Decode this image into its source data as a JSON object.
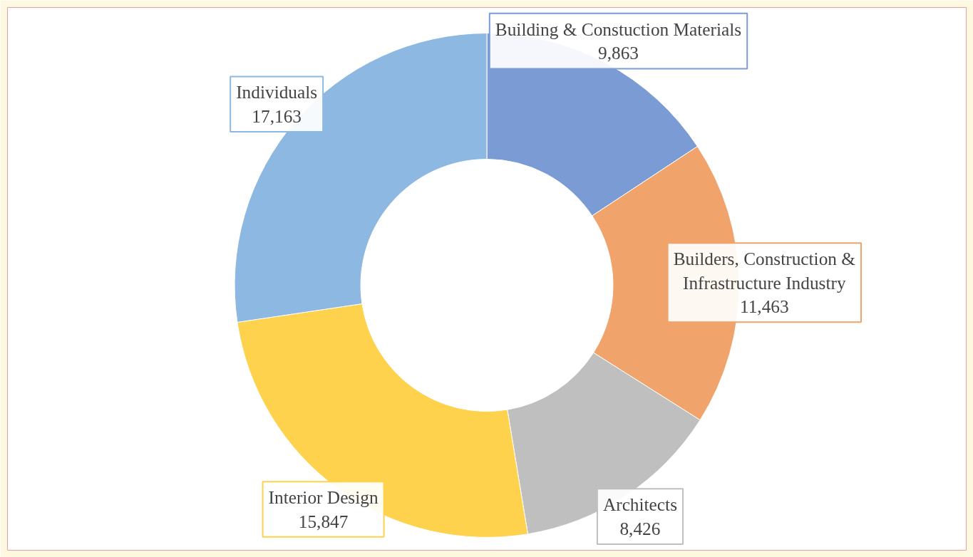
{
  "chart_data": {
    "type": "donut",
    "categories": [
      "Building & Constuction Materials",
      "Builders, Construction & Infrastructure Industry",
      "Architects",
      "Interior Design",
      "Individuals"
    ],
    "values": [
      9863,
      11463,
      8426,
      15847,
      17163
    ],
    "colors": [
      "#7b9bd4",
      "#f0a46c",
      "#bfbfbf",
      "#fed24c",
      "#8db8e1"
    ],
    "value_labels": [
      "9,863",
      "11,463",
      "8,426",
      "15,847",
      "17,163"
    ]
  }
}
